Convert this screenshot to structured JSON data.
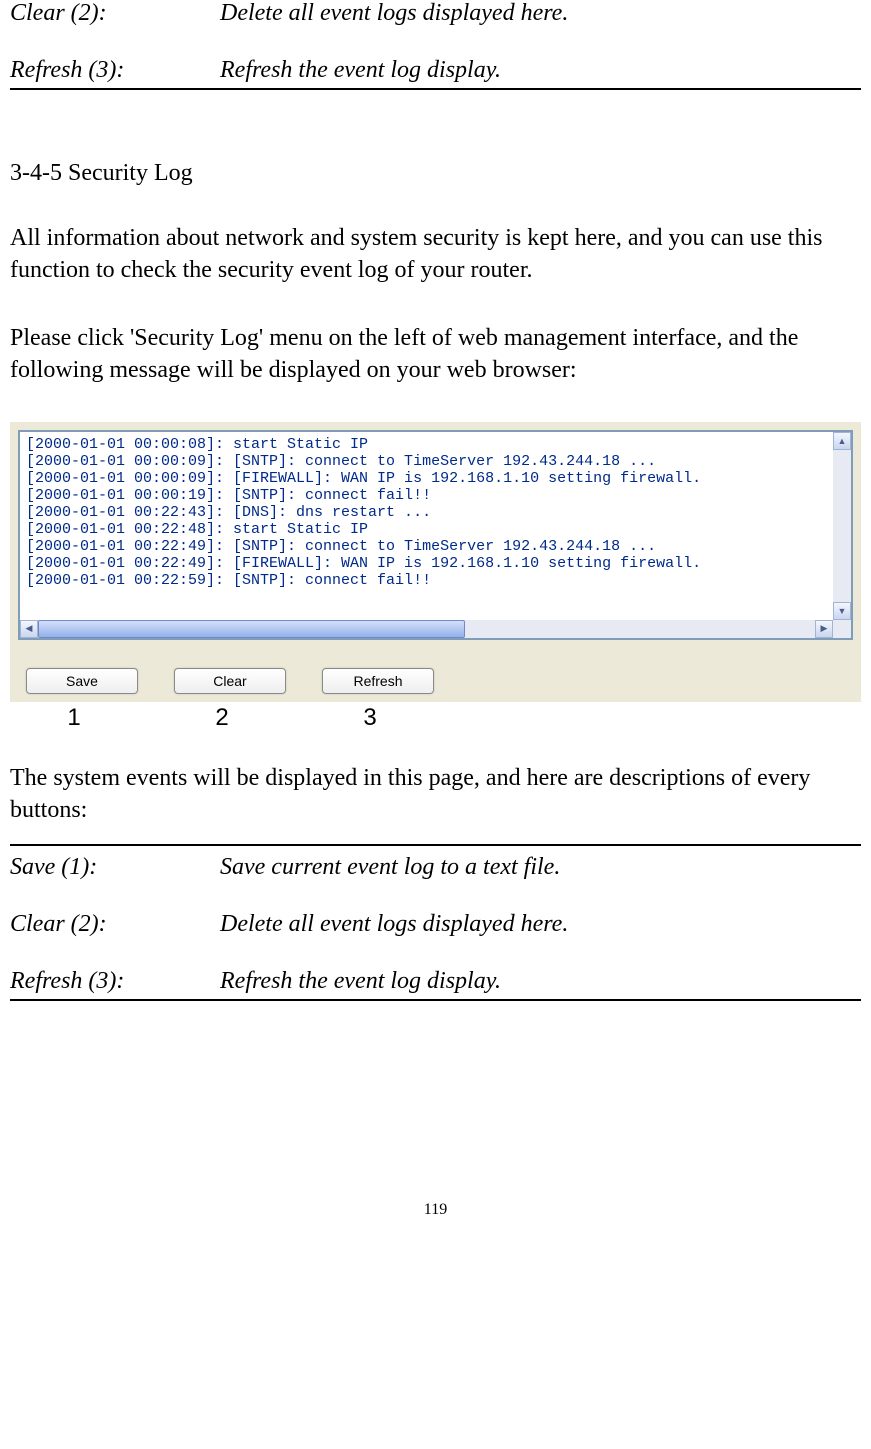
{
  "top_defs": [
    {
      "term": "Clear (2):",
      "desc": "Delete all event logs displayed here."
    },
    {
      "term": "Refresh (3):",
      "desc": "Refresh the event log display."
    }
  ],
  "section_heading": "3-4-5 Security Log",
  "para1": "All information about network and system security is kept here, and you can use this function to check the security event log of your router.",
  "para2": "Please click 'Security Log' menu on the left of web management interface, and the following message will be displayed on your web browser:",
  "log_lines": [
    "[2000-01-01 00:00:08]: start Static IP",
    "[2000-01-01 00:00:09]: [SNTP]: connect to TimeServer 192.43.244.18 ...",
    "[2000-01-01 00:00:09]: [FIREWALL]: WAN IP is 192.168.1.10 setting firewall.",
    "[2000-01-01 00:00:19]: [SNTP]: connect fail!!",
    "[2000-01-01 00:22:43]: [DNS]: dns restart ...",
    "[2000-01-01 00:22:48]: start Static IP",
    "[2000-01-01 00:22:49]: [SNTP]: connect to TimeServer 192.43.244.18 ...",
    "[2000-01-01 00:22:49]: [FIREWALL]: WAN IP is 192.168.1.10 setting firewall.",
    "[2000-01-01 00:22:59]: [SNTP]: connect fail!!"
  ],
  "buttons": {
    "save": "Save",
    "clear": "Clear",
    "refresh": "Refresh"
  },
  "annotations": [
    "1",
    "2",
    "3"
  ],
  "desc_intro": "The system events will be displayed in this page, and here are descriptions of every buttons:",
  "bottom_defs": [
    {
      "term": "Save (1):",
      "desc": "Save current event log to a text file."
    },
    {
      "term": "Clear (2):",
      "desc": "Delete all event logs displayed here."
    },
    {
      "term": "Refresh (3):",
      "desc": "Refresh the event log display."
    }
  ],
  "page_number": "119",
  "colors": {
    "log_text": "#002a8a",
    "panel_bg": "#ece9d8",
    "border": "#7f9db9"
  }
}
